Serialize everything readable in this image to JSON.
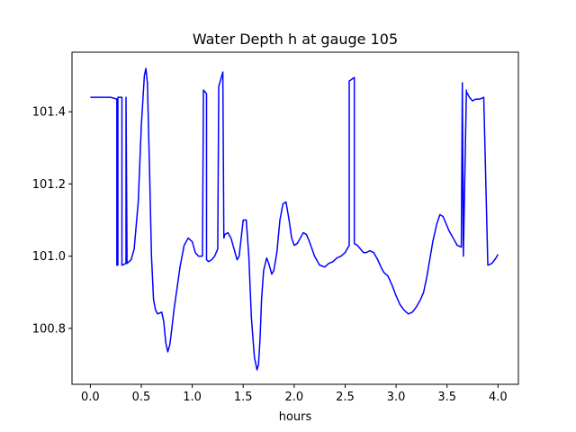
{
  "chart_data": {
    "type": "line",
    "title": "Water Depth h at gauge 105",
    "xlabel": "hours",
    "ylabel": "",
    "xlim": [
      -0.18,
      4.2
    ],
    "ylim": [
      100.645,
      101.565
    ],
    "xticks": [
      0.0,
      0.5,
      1.0,
      1.5,
      2.0,
      2.5,
      3.0,
      3.5,
      4.0
    ],
    "xtick_labels": [
      "0.0",
      "0.5",
      "1.0",
      "1.5",
      "2.0",
      "2.5",
      "3.0",
      "3.5",
      "4.0"
    ],
    "yticks": [
      100.8,
      101.0,
      101.2,
      101.4
    ],
    "ytick_labels": [
      "100.8",
      "101.0",
      "101.2",
      "101.4"
    ],
    "grid": false,
    "series": [
      {
        "color": "#0000ff",
        "x": [
          0.0,
          0.2,
          0.26,
          0.26,
          0.27,
          0.27,
          0.3,
          0.31,
          0.31,
          0.35,
          0.35,
          0.36,
          0.4,
          0.43,
          0.47,
          0.5,
          0.53,
          0.545,
          0.56,
          0.58,
          0.6,
          0.62,
          0.64,
          0.66,
          0.7,
          0.72,
          0.74,
          0.76,
          0.78,
          0.8,
          0.82,
          0.85,
          0.88,
          0.92,
          0.96,
          1.0,
          1.03,
          1.06,
          1.08,
          1.1,
          1.11,
          1.11,
          1.14,
          1.14,
          1.16,
          1.19,
          1.22,
          1.25,
          1.26,
          1.26,
          1.3,
          1.31,
          1.32,
          1.35,
          1.38,
          1.41,
          1.44,
          1.46,
          1.48,
          1.5,
          1.53,
          1.555,
          1.58,
          1.61,
          1.635,
          1.65,
          1.665,
          1.68,
          1.7,
          1.73,
          1.75,
          1.78,
          1.8,
          1.83,
          1.86,
          1.89,
          1.92,
          1.95,
          1.975,
          2.0,
          2.03,
          2.06,
          2.09,
          2.12,
          2.15,
          2.2,
          2.25,
          2.3,
          2.34,
          2.38,
          2.42,
          2.46,
          2.5,
          2.52,
          2.54,
          2.54,
          2.59,
          2.59,
          2.62,
          2.65,
          2.68,
          2.71,
          2.74,
          2.78,
          2.82,
          2.86,
          2.88,
          2.92,
          2.96,
          3.0,
          3.04,
          3.08,
          3.12,
          3.16,
          3.2,
          3.24,
          3.27,
          3.3,
          3.33,
          3.36,
          3.4,
          3.43,
          3.46,
          3.49,
          3.52,
          3.56,
          3.6,
          3.64,
          3.65,
          3.65,
          3.66,
          3.66,
          3.69,
          3.69,
          3.72,
          3.75,
          3.78,
          3.82,
          3.86,
          3.9,
          3.9,
          3.94,
          3.98,
          4.0
        ],
        "y": [
          101.44,
          101.44,
          101.435,
          100.975,
          100.975,
          101.44,
          101.44,
          101.44,
          100.975,
          100.98,
          101.44,
          100.98,
          100.99,
          101.02,
          101.15,
          101.36,
          101.5,
          101.52,
          101.48,
          101.25,
          101.0,
          100.88,
          100.85,
          100.84,
          100.845,
          100.82,
          100.76,
          100.735,
          100.755,
          100.8,
          100.85,
          100.91,
          100.97,
          101.03,
          101.05,
          101.04,
          101.01,
          101.0,
          101.0,
          101.0,
          101.46,
          101.46,
          101.45,
          100.99,
          100.985,
          100.99,
          101.0,
          101.02,
          101.47,
          101.47,
          101.51,
          101.05,
          101.06,
          101.065,
          101.05,
          101.02,
          100.99,
          101.0,
          101.05,
          101.1,
          101.1,
          101.0,
          100.83,
          100.72,
          100.685,
          100.7,
          100.77,
          100.88,
          100.96,
          100.995,
          100.98,
          100.95,
          100.96,
          101.01,
          101.1,
          101.145,
          101.15,
          101.1,
          101.05,
          101.03,
          101.035,
          101.05,
          101.065,
          101.06,
          101.04,
          101.0,
          100.975,
          100.97,
          100.98,
          100.985,
          100.995,
          101.0,
          101.01,
          101.02,
          101.03,
          101.485,
          101.495,
          101.035,
          101.03,
          101.02,
          101.01,
          101.01,
          101.015,
          101.01,
          100.99,
          100.965,
          100.955,
          100.945,
          100.92,
          100.89,
          100.865,
          100.85,
          100.84,
          100.845,
          100.86,
          100.88,
          100.9,
          100.94,
          100.99,
          101.04,
          101.09,
          101.115,
          101.11,
          101.09,
          101.07,
          101.05,
          101.03,
          101.025,
          101.48,
          101.475,
          101.005,
          101.0,
          101.46,
          101.455,
          101.44,
          101.43,
          101.435,
          101.435,
          101.44,
          100.975,
          100.975,
          100.98,
          100.995,
          101.005
        ]
      }
    ]
  }
}
